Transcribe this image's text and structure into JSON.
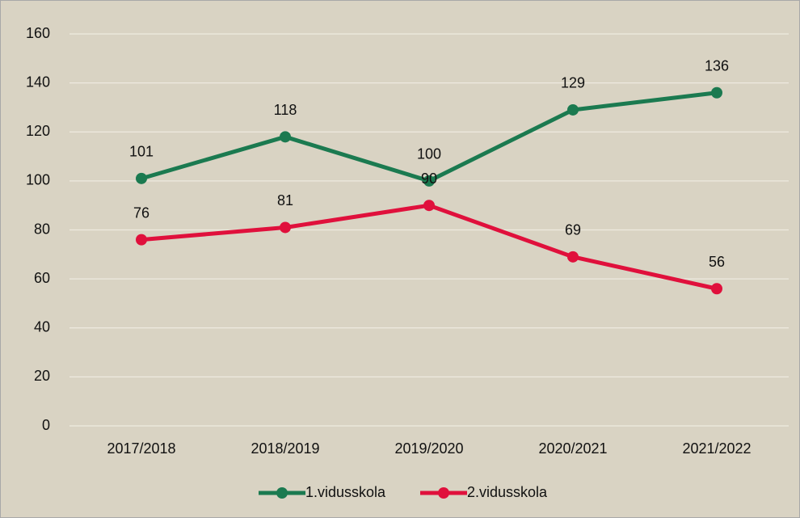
{
  "chart_data": {
    "type": "line",
    "categories": [
      "2017/2018",
      "2018/2019",
      "2019/2020",
      "2020/2021",
      "2021/2022"
    ],
    "series": [
      {
        "name": "1.vidusskola",
        "color": "#1b7a50",
        "values": [
          101,
          118,
          100,
          129,
          136
        ]
      },
      {
        "name": "2.vidusskola",
        "color": "#e0103c",
        "values": [
          76,
          81,
          90,
          69,
          56
        ]
      }
    ],
    "ylim": [
      0,
      160
    ],
    "yticks": [
      0,
      20,
      40,
      60,
      80,
      100,
      120,
      140,
      160
    ],
    "grid": true,
    "legend": "bottom"
  }
}
